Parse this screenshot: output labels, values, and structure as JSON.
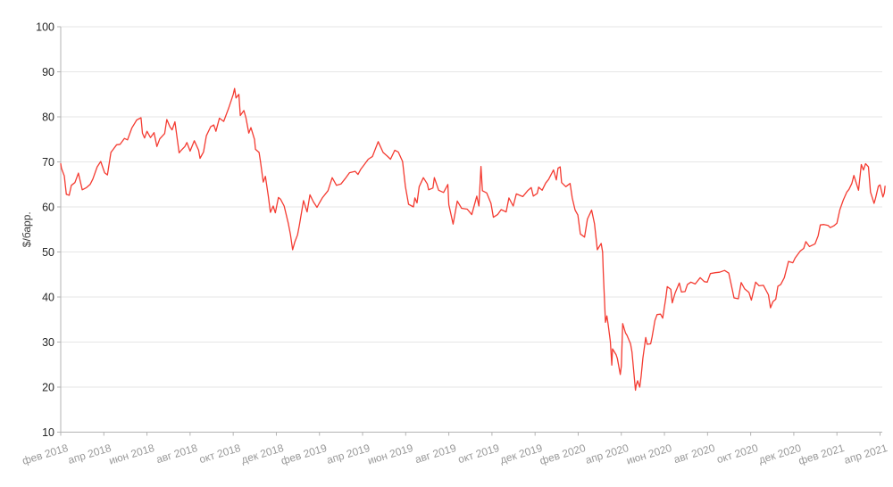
{
  "figure": {
    "background": "#ffffff"
  },
  "chart_data": {
    "type": "line",
    "title": "",
    "xlabel": "",
    "ylabel": "$/барр.",
    "ylim": [
      10,
      100
    ],
    "grid": true,
    "legend": "none",
    "colors": {
      "line": "#f4３b31",
      "line_fixed": "#f43b31",
      "grid": "#e6e6e6",
      "axis": "#b3b3b3",
      "ytick_label": "#262626",
      "xtick_label": "#999999",
      "ytitle": "#3d3d3d"
    },
    "yticks": [
      10,
      20,
      30,
      40,
      50,
      60,
      70,
      80,
      90,
      100
    ],
    "xticks": [
      {
        "label": "фев 2018",
        "m": 0
      },
      {
        "label": "апр 2018",
        "m": 2
      },
      {
        "label": "июн 2018",
        "m": 4
      },
      {
        "label": "авг 2018",
        "m": 6
      },
      {
        "label": "окт 2018",
        "m": 8
      },
      {
        "label": "дек 2018",
        "m": 10
      },
      {
        "label": "фев 2019",
        "m": 12
      },
      {
        "label": "апр 2019",
        "m": 14
      },
      {
        "label": "июн 2019",
        "m": 16
      },
      {
        "label": "авг 2019",
        "m": 18
      },
      {
        "label": "окт 2019",
        "m": 20
      },
      {
        "label": "дек 2019",
        "m": 22
      },
      {
        "label": "фев 2020",
        "m": 24
      },
      {
        "label": "апр 2020",
        "m": 26
      },
      {
        "label": "июн 2020",
        "m": 28
      },
      {
        "label": "авг 2020",
        "m": 30
      },
      {
        "label": "окт 2020",
        "m": 32
      },
      {
        "label": "дек 2020",
        "m": 34
      },
      {
        "label": "фев 2021",
        "m": 36
      },
      {
        "label": "апр 2021",
        "m": 38
      }
    ],
    "points": [
      [
        "2018-02-01",
        69.6
      ],
      [
        "2018-02-02",
        68.6
      ],
      [
        "2018-02-06",
        66.9
      ],
      [
        "2018-02-09",
        62.8
      ],
      [
        "2018-02-13",
        62.6
      ],
      [
        "2018-02-16",
        64.8
      ],
      [
        "2018-02-21",
        65.4
      ],
      [
        "2018-02-26",
        67.5
      ],
      [
        "2018-03-01",
        63.8
      ],
      [
        "2018-03-07",
        64.3
      ],
      [
        "2018-03-12",
        65.0
      ],
      [
        "2018-03-16",
        66.2
      ],
      [
        "2018-03-22",
        68.9
      ],
      [
        "2018-03-27",
        70.1
      ],
      [
        "2018-04-02",
        67.6
      ],
      [
        "2018-04-06",
        67.1
      ],
      [
        "2018-04-11",
        72.1
      ],
      [
        "2018-04-19",
        73.8
      ],
      [
        "2018-04-24",
        73.9
      ],
      [
        "2018-04-30",
        75.2
      ],
      [
        "2018-05-04",
        74.9
      ],
      [
        "2018-05-10",
        77.5
      ],
      [
        "2018-05-17",
        79.3
      ],
      [
        "2018-05-23",
        79.8
      ],
      [
        "2018-05-25",
        76.4
      ],
      [
        "2018-05-28",
        75.3
      ],
      [
        "2018-06-01",
        76.8
      ],
      [
        "2018-06-06",
        75.4
      ],
      [
        "2018-06-11",
        76.5
      ],
      [
        "2018-06-15",
        73.4
      ],
      [
        "2018-06-19",
        75.1
      ],
      [
        "2018-06-26",
        76.3
      ],
      [
        "2018-06-29",
        79.4
      ],
      [
        "2018-07-03",
        77.8
      ],
      [
        "2018-07-06",
        77.1
      ],
      [
        "2018-07-10",
        78.9
      ],
      [
        "2018-07-16",
        72.0
      ],
      [
        "2018-07-19",
        72.6
      ],
      [
        "2018-07-24",
        73.4
      ],
      [
        "2018-07-27",
        74.3
      ],
      [
        "2018-08-01",
        72.4
      ],
      [
        "2018-08-07",
        74.7
      ],
      [
        "2018-08-13",
        72.6
      ],
      [
        "2018-08-15",
        70.8
      ],
      [
        "2018-08-20",
        72.2
      ],
      [
        "2018-08-24",
        75.8
      ],
      [
        "2018-08-30",
        77.8
      ],
      [
        "2018-09-04",
        78.2
      ],
      [
        "2018-09-07",
        76.8
      ],
      [
        "2018-09-12",
        79.7
      ],
      [
        "2018-09-18",
        79.0
      ],
      [
        "2018-09-25",
        81.9
      ],
      [
        "2018-10-01",
        85.0
      ],
      [
        "2018-10-03",
        86.3
      ],
      [
        "2018-10-05",
        84.2
      ],
      [
        "2018-10-09",
        85.0
      ],
      [
        "2018-10-11",
        80.3
      ],
      [
        "2018-10-16",
        81.4
      ],
      [
        "2018-10-19",
        79.8
      ],
      [
        "2018-10-23",
        76.4
      ],
      [
        "2018-10-26",
        77.6
      ],
      [
        "2018-10-31",
        75.0
      ],
      [
        "2018-11-02",
        72.8
      ],
      [
        "2018-11-07",
        72.1
      ],
      [
        "2018-11-09",
        70.2
      ],
      [
        "2018-11-13",
        65.5
      ],
      [
        "2018-11-16",
        66.8
      ],
      [
        "2018-11-20",
        62.5
      ],
      [
        "2018-11-23",
        58.8
      ],
      [
        "2018-11-27",
        60.2
      ],
      [
        "2018-11-30",
        58.7
      ],
      [
        "2018-12-04",
        62.1
      ],
      [
        "2018-12-07",
        61.7
      ],
      [
        "2018-12-12",
        60.2
      ],
      [
        "2018-12-18",
        56.3
      ],
      [
        "2018-12-21",
        53.8
      ],
      [
        "2018-12-24",
        50.5
      ],
      [
        "2018-12-27",
        52.2
      ],
      [
        "2018-12-31",
        53.8
      ],
      [
        "2019-01-03",
        55.9
      ],
      [
        "2019-01-09",
        61.4
      ],
      [
        "2019-01-14",
        58.9
      ],
      [
        "2019-01-18",
        62.7
      ],
      [
        "2019-01-23",
        61.1
      ],
      [
        "2019-01-28",
        59.9
      ],
      [
        "2019-01-31",
        60.8
      ],
      [
        "2019-02-05",
        62.0
      ],
      [
        "2019-02-13",
        63.6
      ],
      [
        "2019-02-19",
        66.5
      ],
      [
        "2019-02-25",
        64.8
      ],
      [
        "2019-03-01",
        65.1
      ],
      [
        "2019-03-07",
        66.3
      ],
      [
        "2019-03-13",
        67.6
      ],
      [
        "2019-03-21",
        67.9
      ],
      [
        "2019-03-25",
        67.2
      ],
      [
        "2019-03-29",
        68.4
      ],
      [
        "2019-04-03",
        69.3
      ],
      [
        "2019-04-09",
        70.6
      ],
      [
        "2019-04-15",
        71.2
      ],
      [
        "2019-04-23",
        74.5
      ],
      [
        "2019-04-30",
        72.1
      ],
      [
        "2019-05-06",
        71.2
      ],
      [
        "2019-05-10",
        70.6
      ],
      [
        "2019-05-16",
        72.6
      ],
      [
        "2019-05-21",
        72.2
      ],
      [
        "2019-05-27",
        70.1
      ],
      [
        "2019-05-31",
        64.5
      ],
      [
        "2019-06-05",
        60.6
      ],
      [
        "2019-06-12",
        60.0
      ],
      [
        "2019-06-14",
        62.0
      ],
      [
        "2019-06-17",
        60.9
      ],
      [
        "2019-06-20",
        64.5
      ],
      [
        "2019-06-26",
        66.5
      ],
      [
        "2019-07-01",
        65.1
      ],
      [
        "2019-07-03",
        63.8
      ],
      [
        "2019-07-09",
        64.2
      ],
      [
        "2019-07-11",
        66.5
      ],
      [
        "2019-07-17",
        63.7
      ],
      [
        "2019-07-24",
        63.2
      ],
      [
        "2019-07-30",
        65.0
      ],
      [
        "2019-08-01",
        60.5
      ],
      [
        "2019-08-07",
        56.2
      ],
      [
        "2019-08-13",
        61.3
      ],
      [
        "2019-08-19",
        59.7
      ],
      [
        "2019-08-27",
        59.5
      ],
      [
        "2019-09-03",
        58.3
      ],
      [
        "2019-09-10",
        62.4
      ],
      [
        "2019-09-13",
        60.2
      ],
      [
        "2019-09-16",
        69.0
      ],
      [
        "2019-09-18",
        63.6
      ],
      [
        "2019-09-24",
        63.1
      ],
      [
        "2019-09-30",
        60.8
      ],
      [
        "2019-10-03",
        57.7
      ],
      [
        "2019-10-09",
        58.3
      ],
      [
        "2019-10-14",
        59.4
      ],
      [
        "2019-10-21",
        58.9
      ],
      [
        "2019-10-25",
        62.0
      ],
      [
        "2019-10-31",
        60.2
      ],
      [
        "2019-11-05",
        62.9
      ],
      [
        "2019-11-14",
        62.3
      ],
      [
        "2019-11-21",
        63.6
      ],
      [
        "2019-11-26",
        64.3
      ],
      [
        "2019-11-29",
        62.4
      ],
      [
        "2019-12-04",
        63.0
      ],
      [
        "2019-12-06",
        64.4
      ],
      [
        "2019-12-11",
        63.7
      ],
      [
        "2019-12-16",
        65.3
      ],
      [
        "2019-12-20",
        66.1
      ],
      [
        "2019-12-27",
        68.2
      ],
      [
        "2019-12-31",
        66.0
      ],
      [
        "2020-01-03",
        68.6
      ],
      [
        "2020-01-06",
        68.9
      ],
      [
        "2020-01-08",
        65.4
      ],
      [
        "2020-01-14",
        64.5
      ],
      [
        "2020-01-20",
        65.2
      ],
      [
        "2020-01-23",
        62.0
      ],
      [
        "2020-01-27",
        59.3
      ],
      [
        "2020-01-31",
        58.2
      ],
      [
        "2020-02-04",
        54.0
      ],
      [
        "2020-02-10",
        53.3
      ],
      [
        "2020-02-14",
        57.3
      ],
      [
        "2020-02-20",
        59.3
      ],
      [
        "2020-02-24",
        56.3
      ],
      [
        "2020-02-28",
        50.5
      ],
      [
        "2020-03-03",
        51.9
      ],
      [
        "2020-03-05",
        50.0
      ],
      [
        "2020-03-06",
        45.3
      ],
      [
        "2020-03-09",
        34.4
      ],
      [
        "2020-03-11",
        35.8
      ],
      [
        "2020-03-13",
        33.8
      ],
      [
        "2020-03-16",
        30.1
      ],
      [
        "2020-03-18",
        24.9
      ],
      [
        "2020-03-19",
        28.5
      ],
      [
        "2020-03-24",
        27.2
      ],
      [
        "2020-03-26",
        26.3
      ],
      [
        "2020-03-30",
        22.8
      ],
      [
        "2020-04-01",
        24.7
      ],
      [
        "2020-04-03",
        34.1
      ],
      [
        "2020-04-07",
        32.0
      ],
      [
        "2020-04-09",
        31.5
      ],
      [
        "2020-04-14",
        29.6
      ],
      [
        "2020-04-16",
        27.8
      ],
      [
        "2020-04-21",
        19.3
      ],
      [
        "2020-04-22",
        20.4
      ],
      [
        "2020-04-24",
        21.4
      ],
      [
        "2020-04-27",
        20.0
      ],
      [
        "2020-04-29",
        22.5
      ],
      [
        "2020-05-01",
        26.4
      ],
      [
        "2020-05-05",
        31.0
      ],
      [
        "2020-05-07",
        29.5
      ],
      [
        "2020-05-12",
        29.6
      ],
      [
        "2020-05-14",
        31.1
      ],
      [
        "2020-05-18",
        34.8
      ],
      [
        "2020-05-21",
        36.1
      ],
      [
        "2020-05-26",
        36.2
      ],
      [
        "2020-05-29",
        35.3
      ],
      [
        "2020-06-03",
        39.8
      ],
      [
        "2020-06-05",
        42.3
      ],
      [
        "2020-06-10",
        41.7
      ],
      [
        "2020-06-12",
        38.7
      ],
      [
        "2020-06-16",
        40.9
      ],
      [
        "2020-06-22",
        43.1
      ],
      [
        "2020-06-25",
        41.1
      ],
      [
        "2020-06-30",
        41.2
      ],
      [
        "2020-07-03",
        42.8
      ],
      [
        "2020-07-08",
        43.3
      ],
      [
        "2020-07-14",
        42.9
      ],
      [
        "2020-07-21",
        44.3
      ],
      [
        "2020-07-27",
        43.4
      ],
      [
        "2020-07-31",
        43.3
      ],
      [
        "2020-08-05",
        45.2
      ],
      [
        "2020-08-12",
        45.4
      ],
      [
        "2020-08-18",
        45.5
      ],
      [
        "2020-08-25",
        45.9
      ],
      [
        "2020-08-31",
        45.3
      ],
      [
        "2020-09-04",
        42.7
      ],
      [
        "2020-09-08",
        39.8
      ],
      [
        "2020-09-14",
        39.6
      ],
      [
        "2020-09-18",
        43.2
      ],
      [
        "2020-09-23",
        41.8
      ],
      [
        "2020-09-29",
        41.0
      ],
      [
        "2020-10-02",
        39.3
      ],
      [
        "2020-10-08",
        43.3
      ],
      [
        "2020-10-13",
        42.5
      ],
      [
        "2020-10-19",
        42.6
      ],
      [
        "2020-10-26",
        40.5
      ],
      [
        "2020-10-29",
        37.6
      ],
      [
        "2020-11-02",
        39.0
      ],
      [
        "2020-11-06",
        39.5
      ],
      [
        "2020-11-09",
        42.4
      ],
      [
        "2020-11-13",
        42.8
      ],
      [
        "2020-11-18",
        44.3
      ],
      [
        "2020-11-24",
        47.9
      ],
      [
        "2020-11-30",
        47.6
      ],
      [
        "2020-12-03",
        48.7
      ],
      [
        "2020-12-10",
        50.2
      ],
      [
        "2020-12-15",
        50.8
      ],
      [
        "2020-12-18",
        52.3
      ],
      [
        "2020-12-23",
        51.2
      ],
      [
        "2020-12-31",
        51.8
      ],
      [
        "2021-01-05",
        53.6
      ],
      [
        "2021-01-08",
        56.0
      ],
      [
        "2021-01-13",
        56.1
      ],
      [
        "2021-01-19",
        55.9
      ],
      [
        "2021-01-22",
        55.4
      ],
      [
        "2021-01-27",
        55.8
      ],
      [
        "2021-02-01",
        56.4
      ],
      [
        "2021-02-05",
        59.3
      ],
      [
        "2021-02-10",
        61.5
      ],
      [
        "2021-02-15",
        63.3
      ],
      [
        "2021-02-18",
        63.9
      ],
      [
        "2021-02-22",
        65.2
      ],
      [
        "2021-02-25",
        67.0
      ],
      [
        "2021-03-01",
        63.7
      ],
      [
        "2021-03-05",
        69.4
      ],
      [
        "2021-03-08",
        68.2
      ],
      [
        "2021-03-11",
        69.6
      ],
      [
        "2021-03-15",
        68.9
      ],
      [
        "2021-03-18",
        63.3
      ],
      [
        "2021-03-23",
        60.8
      ],
      [
        "2021-03-25",
        61.9
      ],
      [
        "2021-03-29",
        64.6
      ],
      [
        "2021-04-01",
        64.9
      ],
      [
        "2021-04-05",
        62.2
      ],
      [
        "2021-04-07",
        63.1
      ],
      [
        "2021-04-08",
        64.6
      ]
    ]
  }
}
